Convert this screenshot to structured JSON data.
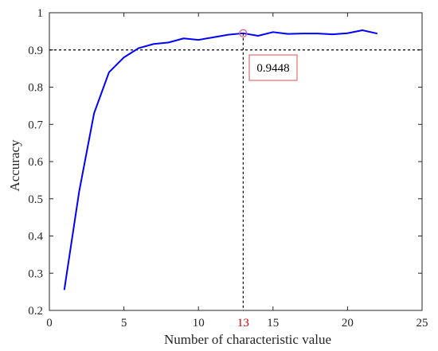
{
  "chart_data": {
    "type": "line",
    "title": "",
    "xlabel": "Number of  characteristic value",
    "ylabel": "Accuracy",
    "xlim": [
      0,
      25
    ],
    "ylim": [
      0.2,
      1
    ],
    "x_ticks": [
      "0",
      "5",
      "10",
      "15",
      "20",
      "25"
    ],
    "y_ticks": [
      "0.2",
      "0.3",
      "0.4",
      "0.5",
      "0.6",
      "0.7",
      "0.8",
      "0.9",
      "1"
    ],
    "grid": false,
    "series": [
      {
        "color": "#0000ff",
        "x": [
          1,
          2,
          3,
          4,
          5,
          6,
          7,
          8,
          9,
          10,
          11,
          12,
          13,
          14,
          15,
          16,
          17,
          18,
          19,
          20,
          21,
          22
        ],
        "y": [
          0.255,
          0.52,
          0.73,
          0.84,
          0.88,
          0.905,
          0.916,
          0.92,
          0.931,
          0.927,
          0.934,
          0.941,
          0.9448,
          0.938,
          0.948,
          0.943,
          0.944,
          0.944,
          0.942,
          0.945,
          0.953,
          0.944
        ]
      }
    ],
    "annotations": {
      "highlight_point": {
        "x": 13,
        "y": 0.9448,
        "marker_color": "#e06080"
      },
      "reference_hline_y": 0.9,
      "reference_vline_x": 13,
      "highlighted_x_tick": {
        "label": "13",
        "color": "#cc0000"
      },
      "value_box": {
        "text": "0.9448",
        "border_color": "#e07070"
      }
    }
  }
}
